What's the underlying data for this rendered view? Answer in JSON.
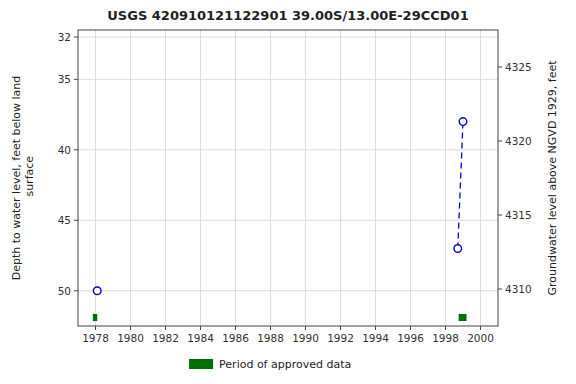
{
  "chart_data": {
    "type": "scatter",
    "title": "USGS 420910121122901 39.00S/13.00E-29CCD01",
    "y_label": "Depth to water level, feet below land\n surface",
    "y2_label": "Groundwater level above NGVD 1929, feet",
    "xlim": [
      1977,
      2001
    ],
    "xticks": [
      1978,
      1980,
      1982,
      1984,
      1986,
      1988,
      1990,
      1992,
      1994,
      1996,
      1998,
      2000
    ],
    "ylim": [
      52.5,
      31.5
    ],
    "yticks": [
      32,
      35,
      40,
      45,
      50
    ],
    "y2lim": [
      4307.5,
      4327.5
    ],
    "y2ticks": [
      4310,
      4315,
      4320,
      4325
    ],
    "grid": true,
    "legend": "bottom",
    "series": [
      {
        "type": "scatter",
        "x": [
          1978.1,
          1998.7,
          1999.0
        ],
        "values": [
          50.0,
          47.0,
          38.0
        ],
        "color": "#0000cc",
        "marker": "open_circle"
      },
      {
        "type": "line",
        "x": [
          1978.1,
          1998.7,
          1999.0
        ],
        "values": [
          null,
          47.0,
          38.0
        ],
        "color": "#0000cc",
        "line_style": "dashed"
      },
      {
        "type": "span",
        "name": "Period of approved data",
        "x": [
          1977.85,
          1998.75
        ],
        "widths": [
          0.25,
          0.45
        ],
        "color": "#007000"
      }
    ]
  }
}
